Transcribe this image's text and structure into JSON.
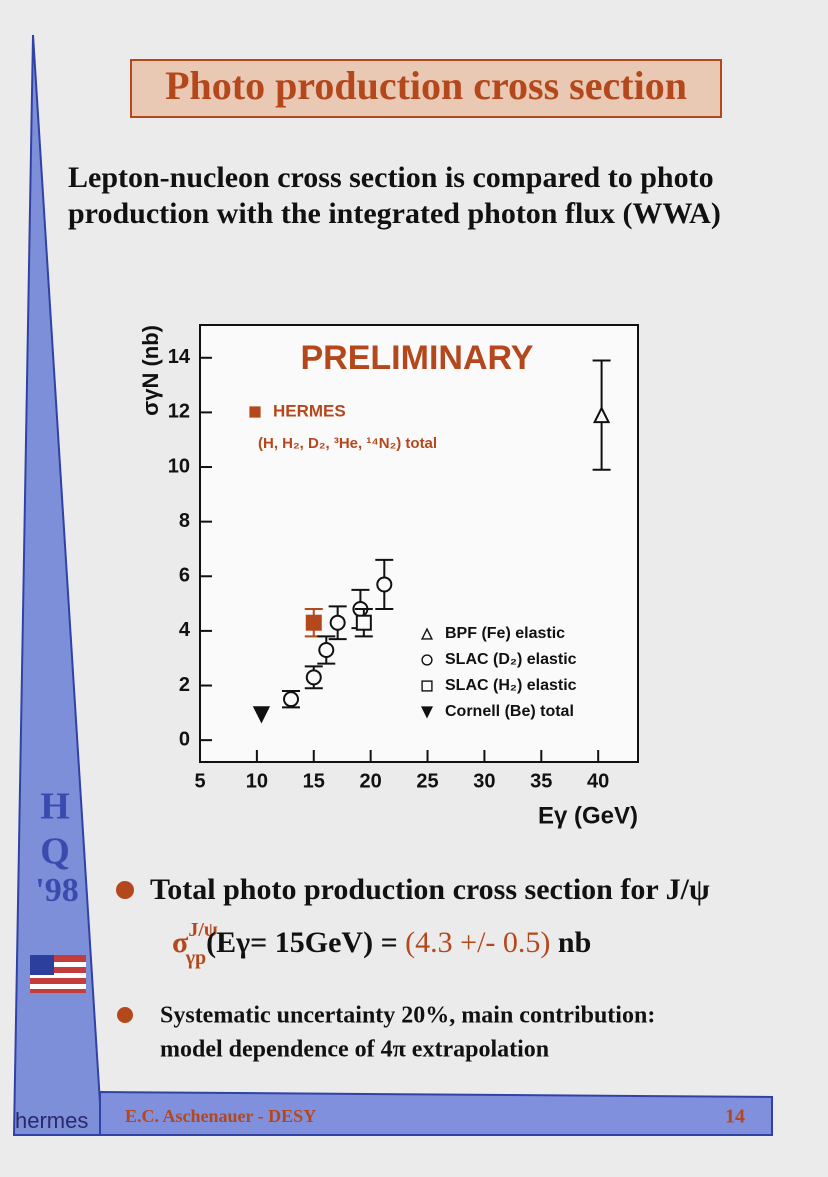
{
  "header": {
    "title": "Photo production cross section"
  },
  "intro": {
    "lines": [
      "Lepton-nucleon cross section is compared to photo",
      "production with the integrated photon flux (WWA)"
    ]
  },
  "chart_data": {
    "type": "scatter",
    "annotation": "PRELIMINARY",
    "xlabel": "Eγ (GeV)",
    "ylabel": "σγN (nb)",
    "xlim": [
      5,
      43.5
    ],
    "ylim": [
      -0.8,
      15.2
    ],
    "xticks": [
      5,
      10,
      15,
      20,
      25,
      30,
      35,
      40
    ],
    "yticks": [
      0,
      2,
      4,
      6,
      8,
      10,
      12,
      14
    ],
    "series": [
      {
        "name": "HERMES",
        "note": "(H, H₂, D₂, ³He, ¹⁴N₂) total",
        "color": "#b5471c",
        "marker": "square-filled",
        "x": [
          15
        ],
        "values": [
          4.3
        ],
        "errors": [
          0.5
        ]
      },
      {
        "name": "BPF (Fe) elastic",
        "color": "#111111",
        "marker": "triangle-open",
        "x": [
          40.3
        ],
        "values": [
          11.9
        ],
        "errors": [
          2.0
        ]
      },
      {
        "name": "SLAC (D₂) elastic",
        "color": "#111111",
        "marker": "circle-open",
        "x": [
          13,
          15,
          16.1,
          17.1,
          19.1,
          21.2
        ],
        "values": [
          1.5,
          2.3,
          3.3,
          4.3,
          4.8,
          5.7
        ],
        "errors": [
          0.3,
          0.4,
          0.5,
          0.6,
          0.7,
          0.9
        ]
      },
      {
        "name": "SLAC (H₂) elastic",
        "color": "#111111",
        "marker": "square-open",
        "x": [
          19.4
        ],
        "values": [
          4.3
        ],
        "errors": [
          0.5
        ]
      },
      {
        "name": "Cornell (Be) total",
        "color": "#111111",
        "marker": "triangle-down-filled",
        "x": [
          10.4
        ],
        "values": [
          0.95
        ]
      }
    ]
  },
  "bullets": [
    {
      "text": "Total photo production cross section for J/ψ",
      "formula": {
        "symbol": "σ",
        "sup": "J/ψ",
        "sub": "γp",
        "args": "(Eγ= 15GeV) = ",
        "result": "(4.3 +/- 0.5)",
        "unit": " nb"
      }
    },
    {
      "lines": [
        "Systematic uncertainty 20%, main contribution:",
        "model dependence of 4π extrapolation"
      ]
    }
  ],
  "side": {
    "letters": [
      "H",
      "Q",
      "'98"
    ],
    "logo": "hermes"
  },
  "footer": {
    "author": "E.C. Aschenauer - DESY",
    "page": "14"
  }
}
